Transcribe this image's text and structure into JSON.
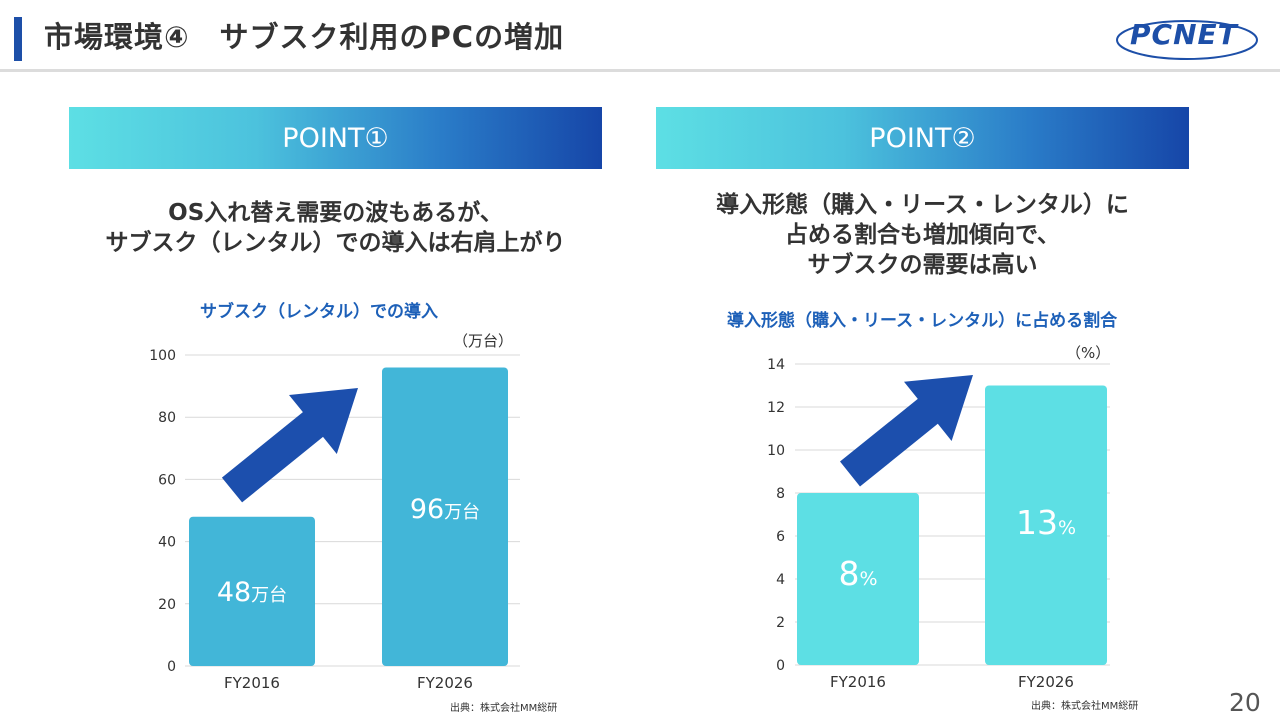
{
  "header": {
    "title": "市場環境④　サブスク利用のPCの増加",
    "logo_text": "PCNET",
    "page_number": "20"
  },
  "point1": {
    "label": "POINT①",
    "text_lines": [
      "OS入れ替え需要の波もあるが、",
      "サブスク（レンタル）での導入は右肩上がり"
    ]
  },
  "point2": {
    "label": "POINT②",
    "text_lines": [
      "導入形態（購入・リース・レンタル）に",
      "占める割合も増加傾向で、",
      "サブスクの需要は高い"
    ]
  },
  "colors": {
    "title_accent": "#1d4fa8",
    "chart1_bar": "#42b6d8",
    "chart2_bar": "#5ddfe4",
    "arrow": "#1c4fad",
    "chart_title": "#1d60b8"
  },
  "chart_data": [
    {
      "type": "bar",
      "title": "サブスク（レンタル）での導入",
      "unit": "（万台）",
      "categories": [
        "FY2016",
        "FY2026"
      ],
      "values": [
        48,
        96
      ],
      "data_labels": [
        {
          "number": "48",
          "suffix": "万台"
        },
        {
          "number": "96",
          "suffix": "万台"
        }
      ],
      "ylim": [
        0,
        100
      ],
      "yticks": [
        0,
        20,
        40,
        60,
        80,
        100
      ],
      "grid": true,
      "annotation": "upward-arrow",
      "source": "出典：株式会社MM総研"
    },
    {
      "type": "bar",
      "title": "導入形態（購入・リース・レンタル）に占める割合",
      "unit": "（%）",
      "categories": [
        "FY2016",
        "FY2026"
      ],
      "values": [
        8,
        13
      ],
      "data_labels": [
        {
          "number": "8",
          "suffix": "%"
        },
        {
          "number": "13",
          "suffix": "%"
        }
      ],
      "ylim": [
        0,
        14
      ],
      "yticks": [
        0,
        2,
        4,
        6,
        8,
        10,
        12,
        14
      ],
      "grid": true,
      "annotation": "upward-arrow",
      "source": "出典：株式会社MM総研"
    }
  ]
}
